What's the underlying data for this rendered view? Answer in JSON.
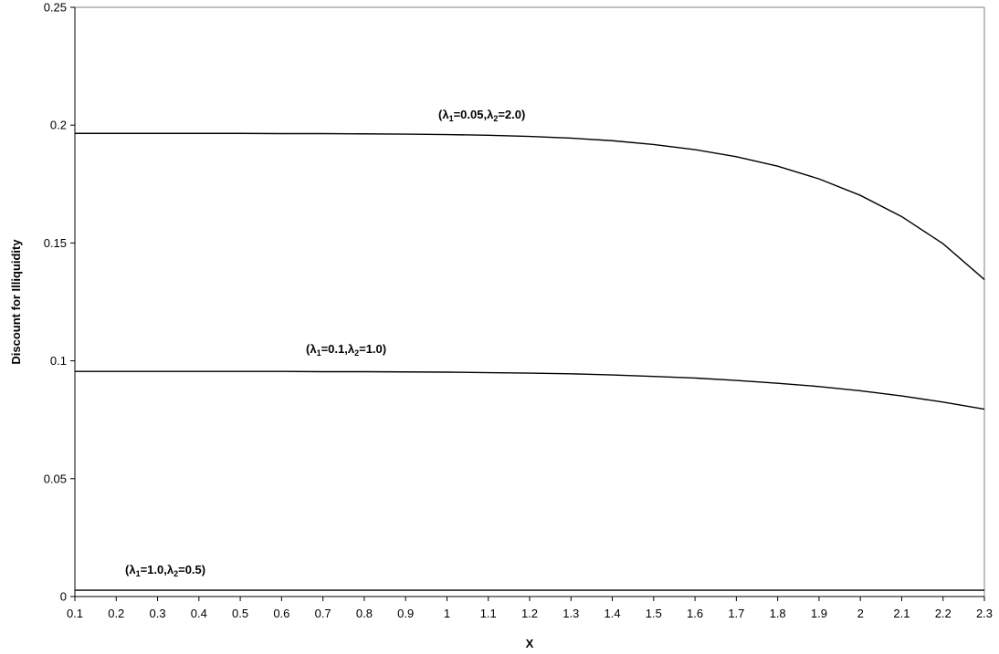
{
  "chart_data": {
    "type": "line",
    "title": "",
    "xlabel": "X",
    "ylabel": "Discount for Illiquidity",
    "xlim": [
      0.1,
      2.3
    ],
    "ylim": [
      0,
      0.25
    ],
    "x_ticks": [
      "0.1",
      "0.2",
      "0.3",
      "0.4",
      "0.5",
      "0.6",
      "0.7",
      "0.8",
      "0.9",
      "1",
      "1.1",
      "1.2",
      "1.3",
      "1.4",
      "1.5",
      "1.6",
      "1.7",
      "1.8",
      "1.9",
      "2",
      "2.1",
      "2.2",
      "2.3"
    ],
    "y_ticks": [
      "0",
      "0.05",
      "0.1",
      "0.15",
      "0.2",
      "0.25"
    ],
    "grid": false,
    "legend": "none",
    "line_color": "#000000",
    "x": [
      0.1,
      0.2,
      0.3,
      0.4,
      0.5,
      0.6,
      0.7,
      0.8,
      0.9,
      1.0,
      1.1,
      1.2,
      1.3,
      1.4,
      1.5,
      1.6,
      1.7,
      1.8,
      1.9,
      2.0,
      2.1,
      2.2,
      2.3
    ],
    "series": [
      {
        "label_parts": [
          "(λ",
          "1",
          "=0.05,λ",
          "2",
          "=2.0)"
        ],
        "values": [
          0.1965,
          0.1965,
          0.1965,
          0.1965,
          0.1965,
          0.1964,
          0.1964,
          0.1963,
          0.1962,
          0.196,
          0.1957,
          0.1952,
          0.1945,
          0.1934,
          0.1918,
          0.1896,
          0.1866,
          0.1826,
          0.1772,
          0.1702,
          0.1612,
          0.1497,
          0.1345
        ]
      },
      {
        "label_parts": [
          "(λ",
          "1",
          "=0.1,λ",
          "2",
          "=1.0)"
        ],
        "values": [
          0.0955,
          0.0955,
          0.0955,
          0.0955,
          0.0955,
          0.0955,
          0.0954,
          0.0954,
          0.0953,
          0.0952,
          0.095,
          0.0948,
          0.0945,
          0.094,
          0.0934,
          0.0927,
          0.0917,
          0.0905,
          0.0891,
          0.0873,
          0.0851,
          0.0825,
          0.0795
        ]
      },
      {
        "label_parts": [
          "(λ",
          "1",
          "=1.0,λ",
          "2",
          "=0.5)"
        ],
        "values": [
          0.0027,
          0.0027,
          0.0027,
          0.0027,
          0.0027,
          0.0027,
          0.0027,
          0.0027,
          0.0027,
          0.0027,
          0.0027,
          0.0027,
          0.0027,
          0.0027,
          0.0027,
          0.0027,
          0.0027,
          0.0027,
          0.0027,
          0.0027,
          0.0027,
          0.0027,
          0.0027
        ]
      }
    ]
  }
}
